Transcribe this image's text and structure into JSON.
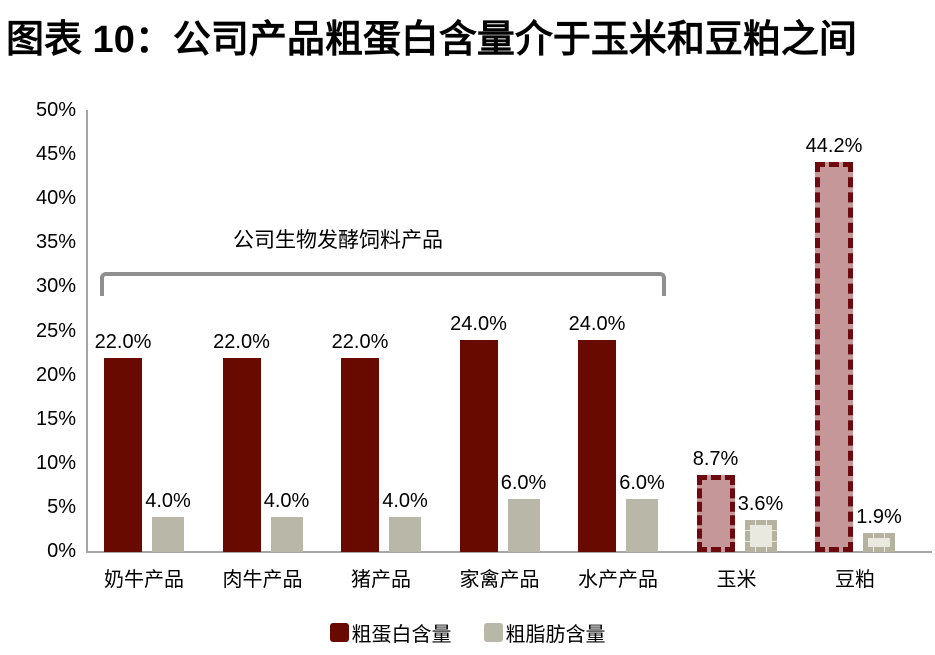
{
  "chart_data": {
    "type": "bar",
    "title": "图表 10：公司产品粗蛋白含量介于玉米和豆粕之间",
    "categories": [
      "奶牛产品",
      "肉牛产品",
      "猪产品",
      "家禽产品",
      "水产产品",
      "玉米",
      "豆粕"
    ],
    "series": [
      {
        "name": "粗蛋白含量",
        "values": [
          22.0,
          22.0,
          22.0,
          24.0,
          24.0,
          8.7,
          44.2
        ],
        "labels": [
          "22.0%",
          "22.0%",
          "22.0%",
          "24.0%",
          "24.0%",
          "8.7%",
          "44.2%"
        ]
      },
      {
        "name": "粗脂肪含量",
        "values": [
          4.0,
          4.0,
          4.0,
          6.0,
          6.0,
          3.6,
          1.9
        ],
        "labels": [
          "4.0%",
          "4.0%",
          "4.0%",
          "6.0%",
          "6.0%",
          "3.6%",
          "1.9%"
        ]
      }
    ],
    "ylim": [
      0,
      50
    ],
    "ytick_step": 5,
    "ytick_labels": [
      "50%",
      "45%",
      "40%",
      "35%",
      "30%",
      "25%",
      "20%",
      "15%",
      "10%",
      "5%",
      "0%"
    ],
    "grid": false,
    "legend_position": "bottom",
    "annotation": {
      "text": "公司生物发酵饲料产品",
      "covers_categories": [
        "奶牛产品",
        "肉牛产品",
        "猪产品",
        "家禽产品",
        "水产产品"
      ]
    },
    "dashed_from_index": 5
  },
  "colors": {
    "protein_solid": "#690a00",
    "protein_dash_border": "#6d0a0f",
    "protein_dash_fill": "#c59799",
    "fat_solid": "#b9b7a7",
    "fat_dash_border": "#b5b2a0",
    "fat_dash_fill": "#eae9e0",
    "axis": "#a6a6a6",
    "bracket": "#8f8f8f",
    "text": "#000000"
  }
}
